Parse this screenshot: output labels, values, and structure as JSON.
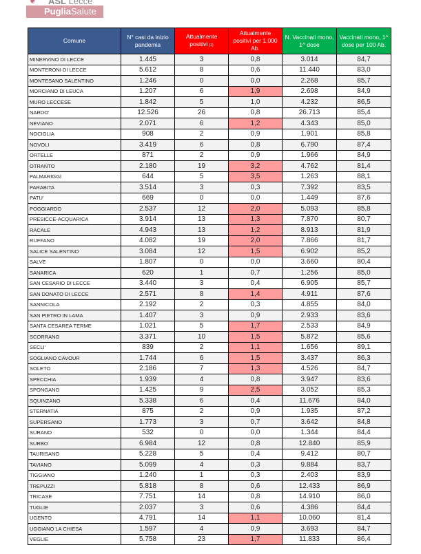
{
  "logo": {
    "asl": "ASL",
    "city": "Lecce",
    "brand_bold": "Puglia",
    "brand_light": "Salute"
  },
  "colors": {
    "header_blue": "#3b5b8f",
    "header_red": "#ff0000",
    "header_green": "#00b050",
    "highlight": "#ff9c9c",
    "row_alt": "#f2f2f2"
  },
  "table": {
    "headers": {
      "comune": "Comune",
      "casi": "N° casi da inizio pandemia",
      "positivi": "Attualmente positivi",
      "positivi_note": "(1)",
      "per1000": "Attualmente positivi per 1.000 Ab.",
      "vaccinati": "N. Vaccinati mono, 1^ dose",
      "pct": "Vaccinati mono, 1^ dose per 100 Ab."
    },
    "rows": [
      [
        "MINERVINO DI LECCE",
        "1.445",
        "3",
        "0,8",
        "3.014",
        "84,7"
      ],
      [
        "MONTERONI DI LECCE",
        "5.612",
        "8",
        "0,6",
        "11.440",
        "83,0"
      ],
      [
        "MONTESANO SALENTINO",
        "1.246",
        "0",
        "0,0",
        "2.268",
        "85,7"
      ],
      [
        "MORCIANO DI LEUCA",
        "1.207",
        "6",
        "1,9",
        "2.698",
        "84,9"
      ],
      [
        "MURO LECCESE",
        "1.842",
        "5",
        "1,0",
        "4.232",
        "86,5"
      ],
      [
        "NARDO'",
        "12.526",
        "26",
        "0,8",
        "26.713",
        "85,4"
      ],
      [
        "NEVIANO",
        "2.071",
        "6",
        "1,2",
        "4.343",
        "85,0"
      ],
      [
        "NOCIGLIA",
        "908",
        "2",
        "0,9",
        "1.901",
        "85,8"
      ],
      [
        "NOVOLI",
        "3.419",
        "6",
        "0,8",
        "6.790",
        "87,4"
      ],
      [
        "ORTELLE",
        "871",
        "2",
        "0,9",
        "1.966",
        "84,9"
      ],
      [
        "OTRANTO",
        "2.180",
        "19",
        "3,2",
        "4.762",
        "81,4"
      ],
      [
        "PALMARIGGI",
        "644",
        "5",
        "3,5",
        "1.263",
        "88,1"
      ],
      [
        "PARABITA",
        "3.514",
        "3",
        "0,3",
        "7.392",
        "83,5"
      ],
      [
        "PATU'",
        "669",
        "0",
        "0,0",
        "1.449",
        "87,6"
      ],
      [
        "POGGIARDO",
        "2.537",
        "12",
        "2,0",
        "5.093",
        "85,8"
      ],
      [
        "PRESICCE-ACQUARICA",
        "3.914",
        "13",
        "1,3",
        "7.870",
        "80,7"
      ],
      [
        "RACALE",
        "4.943",
        "13",
        "1,2",
        "8.913",
        "81,9"
      ],
      [
        "RUFFANO",
        "4.082",
        "19",
        "2,0",
        "7.866",
        "81,7"
      ],
      [
        "SALICE SALENTINO",
        "3.084",
        "12",
        "1,5",
        "6.902",
        "85,2"
      ],
      [
        "SALVE",
        "1.807",
        "0",
        "0,0",
        "3.660",
        "80,4"
      ],
      [
        "SANARICA",
        "620",
        "1",
        "0,7",
        "1.256",
        "85,0"
      ],
      [
        "SAN CESARIO DI LECCE",
        "3.440",
        "3",
        "0,4",
        "6.905",
        "85,7"
      ],
      [
        "SAN DONATO DI LECCE",
        "2.571",
        "8",
        "1,4",
        "4.911",
        "87,6"
      ],
      [
        "SANNICOLA",
        "2.192",
        "2",
        "0,3",
        "4.855",
        "84,0"
      ],
      [
        "SAN PIETRO IN LAMA",
        "1.407",
        "3",
        "0,9",
        "2.933",
        "83,6"
      ],
      [
        "SANTA CESAREA TERME",
        "1.021",
        "5",
        "1,7",
        "2.533",
        "84,9"
      ],
      [
        "SCORRANO",
        "3.371",
        "10",
        "1,5",
        "5.872",
        "85,6"
      ],
      [
        "SECLI'",
        "839",
        "2",
        "1,1",
        "1.656",
        "89,1"
      ],
      [
        "SOGLIANO CAVOUR",
        "1.744",
        "6",
        "1,5",
        "3.437",
        "86,3"
      ],
      [
        "SOLETO",
        "2.186",
        "7",
        "1,3",
        "4.526",
        "84,7"
      ],
      [
        "SPECCHIA",
        "1.939",
        "4",
        "0,8",
        "3.947",
        "83,6"
      ],
      [
        "SPONGANO",
        "1.425",
        "9",
        "2,5",
        "3.052",
        "85,3"
      ],
      [
        "SQUINZANO",
        "5.338",
        "6",
        "0,4",
        "11.676",
        "84,0"
      ],
      [
        "STERNATIA",
        "875",
        "2",
        "0,9",
        "1.935",
        "87,2"
      ],
      [
        "SUPERSANO",
        "1.773",
        "3",
        "0,7",
        "3.642",
        "84,8"
      ],
      [
        "SURANO",
        "532",
        "0",
        "0,0",
        "1.344",
        "84,4"
      ],
      [
        "SURBO",
        "6.984",
        "12",
        "0,8",
        "12.840",
        "85,9"
      ],
      [
        "TAURISANO",
        "5.228",
        "5",
        "0,4",
        "9.412",
        "80,7"
      ],
      [
        "TAVIANO",
        "5.099",
        "4",
        "0,3",
        "9.884",
        "83,7"
      ],
      [
        "TIGGIANO",
        "1.240",
        "1",
        "0,3",
        "2.403",
        "83,9"
      ],
      [
        "TREPUZZI",
        "5.818",
        "8",
        "0,6",
        "12.433",
        "86,9"
      ],
      [
        "TRICASE",
        "7.751",
        "14",
        "0,8",
        "14.910",
        "86,0"
      ],
      [
        "TUGLIE",
        "2.037",
        "3",
        "0,6",
        "4.386",
        "84,4"
      ],
      [
        "UGENTO",
        "4.791",
        "14",
        "1,1",
        "10.060",
        "81,4"
      ],
      [
        "UGGIANO LA CHIESA",
        "1.597",
        "4",
        "0,9",
        "3.693",
        "84,7"
      ],
      [
        "VEGLIE",
        "5.758",
        "23",
        "1,7",
        "11.833",
        "86,4"
      ]
    ]
  }
}
